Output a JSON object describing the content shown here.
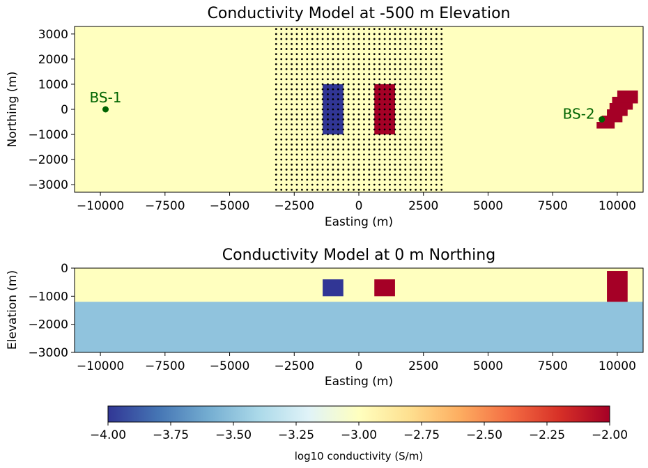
{
  "chart_data": [
    {
      "type": "heatmap",
      "title": "Conductivity Model at -500 m Elevation",
      "xlabel": "Easting (m)",
      "ylabel": "Northing (m)",
      "xlim": [
        -11000,
        11000
      ],
      "ylim": [
        -3300,
        3300
      ],
      "xticks": [
        -10000,
        -7500,
        -5000,
        -2500,
        0,
        2500,
        5000,
        7500,
        10000
      ],
      "xtick_labels": [
        "−10000",
        "−7500",
        "−5000",
        "−2500",
        "0",
        "2500",
        "5000",
        "7500",
        "10000"
      ],
      "yticks": [
        3000,
        2000,
        1000,
        0,
        -1000,
        -2000,
        -3000
      ],
      "ytick_labels": [
        "3000",
        "2000",
        "1000",
        "0",
        "−1000",
        "−2000",
        "−3000"
      ],
      "background_log10_conductivity": -3.0,
      "blocks": [
        {
          "name": "resistive-block",
          "x": [
            -1400,
            -600
          ],
          "y": [
            -1000,
            1000
          ],
          "log10_conductivity": -4.0
        },
        {
          "name": "conductive-block",
          "x": [
            600,
            1400
          ],
          "y": [
            -1000,
            1000
          ],
          "log10_conductivity": -2.0
        }
      ],
      "dipping_body": {
        "log10_conductivity": -2.0,
        "steps": [
          {
            "y": [
              500,
              750
            ],
            "x": [
              10000,
              10800
            ]
          },
          {
            "y": [
              250,
              500
            ],
            "x": [
              9800,
              10800
            ]
          },
          {
            "y": [
              0,
              250
            ],
            "x": [
              9700,
              10600
            ]
          },
          {
            "y": [
              -250,
              0
            ],
            "x": [
              9600,
              10400
            ]
          },
          {
            "y": [
              -500,
              -250
            ],
            "x": [
              9400,
              10200
            ]
          },
          {
            "y": [
              -750,
              -500
            ],
            "x": [
              9200,
              9900
            ]
          }
        ]
      },
      "receiver_grid": {
        "x_range": [
          -3200,
          3200
        ],
        "y_range": [
          -3200,
          3200
        ],
        "spacing": 200
      },
      "base_stations": [
        {
          "label": "BS-1",
          "x": -9800,
          "y": 0
        },
        {
          "label": "BS-2",
          "x": 9400,
          "y": -400
        }
      ]
    },
    {
      "type": "heatmap",
      "title": "Conductivity Model at 0 m Northing",
      "xlabel": "Easting (m)",
      "ylabel": "Elevation (m)",
      "xlim": [
        -11000,
        11000
      ],
      "ylim": [
        -3000,
        0
      ],
      "xticks": [
        -10000,
        -7500,
        -5000,
        -2500,
        0,
        2500,
        5000,
        7500,
        10000
      ],
      "xtick_labels": [
        "−10000",
        "−7500",
        "−5000",
        "−2500",
        "0",
        "2500",
        "5000",
        "7500",
        "10000"
      ],
      "yticks": [
        0,
        -1000,
        -2000,
        -3000
      ],
      "ytick_labels": [
        "0",
        "−1000",
        "−2000",
        "−3000"
      ],
      "layers": [
        {
          "name": "upper-layer",
          "z": [
            -1200,
            0
          ],
          "log10_conductivity": -3.0
        },
        {
          "name": "lower-layer",
          "z": [
            -3000,
            -1200
          ],
          "log10_conductivity": -3.5
        }
      ],
      "blocks": [
        {
          "name": "resistive-block",
          "x": [
            -1400,
            -600
          ],
          "z": [
            -1000,
            -400
          ],
          "log10_conductivity": -4.0
        },
        {
          "name": "conductive-block",
          "x": [
            600,
            1400
          ],
          "z": [
            -1000,
            -400
          ],
          "log10_conductivity": -2.0
        },
        {
          "name": "dipping-body-section",
          "x": [
            9600,
            10400
          ],
          "z": [
            -1200,
            -100
          ],
          "log10_conductivity": -2.0
        }
      ]
    }
  ],
  "colorbar": {
    "label": "log10 conductivity (S/m)",
    "range": [
      -4.0,
      -2.0
    ],
    "ticks": [
      -4.0,
      -3.75,
      -3.5,
      -3.25,
      -3.0,
      -2.75,
      -2.5,
      -2.25,
      -2.0
    ],
    "tick_labels": [
      "−4.00",
      "−3.75",
      "−3.50",
      "−3.25",
      "−3.00",
      "−2.75",
      "−2.50",
      "−2.25",
      "−2.00"
    ],
    "colormap": "RdYlBu_r"
  },
  "colors": {
    "annotation": "#006400",
    "grid_dots": "#000000",
    "axes": "#000000"
  }
}
